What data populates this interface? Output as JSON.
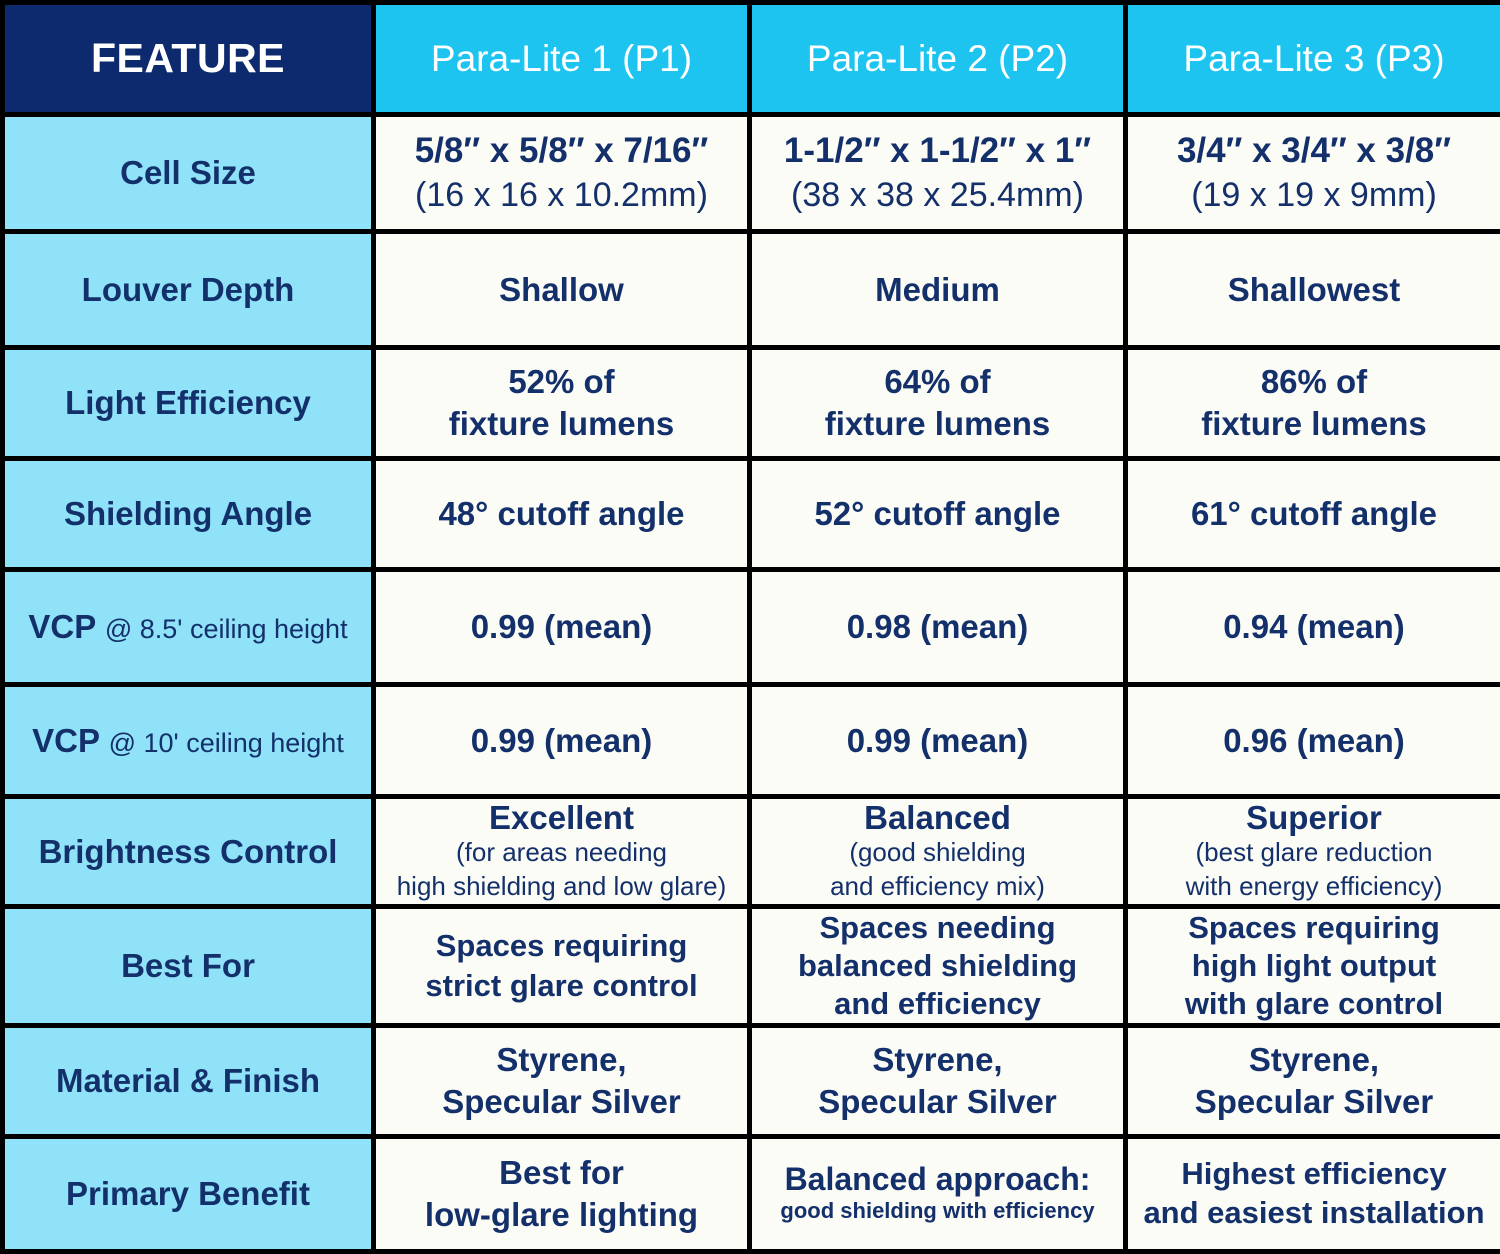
{
  "header": {
    "feature": "FEATURE",
    "p1": "Para-Lite 1 (P1)",
    "p2": "Para-Lite 2 (P2)",
    "p3": "Para-Lite 3 (P3)"
  },
  "rows": {
    "cell_size": {
      "label": "Cell Size",
      "p1": {
        "imperial": "5/8″ x 5/8″ x 7/16″",
        "metric": "(16 x 16 x 10.2mm)"
      },
      "p2": {
        "imperial": "1-1/2″ x 1-1/2″ x 1″",
        "metric": "(38 x 38 x 25.4mm)"
      },
      "p3": {
        "imperial": "3/4″ x 3/4″ x 3/8″",
        "metric": "(19 x 19 x 9mm)"
      }
    },
    "louver_depth": {
      "label": "Louver Depth",
      "p1": "Shallow",
      "p2": "Medium",
      "p3": "Shallowest"
    },
    "light_efficiency": {
      "label": "Light Efficiency",
      "p1": {
        "line1": "52% of",
        "line2": "fixture lumens"
      },
      "p2": {
        "line1": "64% of",
        "line2": "fixture lumens"
      },
      "p3": {
        "line1": "86% of",
        "line2": "fixture lumens"
      }
    },
    "shielding_angle": {
      "label": "Shielding Angle",
      "p1": "48° cutoff angle",
      "p2": "52° cutoff angle",
      "p3": "61° cutoff angle"
    },
    "vcp_85": {
      "label_main": "VCP",
      "label_sub": "@ 8.5' ceiling height",
      "p1": "0.99 (mean)",
      "p2": "0.98 (mean)",
      "p3": "0.94 (mean)"
    },
    "vcp_10": {
      "label_main": "VCP",
      "label_sub": "@ 10' ceiling height",
      "p1": "0.99 (mean)",
      "p2": "0.99 (mean)",
      "p3": "0.96 (mean)"
    },
    "brightness_control": {
      "label": "Brightness Control",
      "p1": {
        "title": "Excellent",
        "note1": "(for areas needing",
        "note2": "high shielding and low glare)"
      },
      "p2": {
        "title": "Balanced",
        "note1": "(good shielding",
        "note2": "and efficiency mix)"
      },
      "p3": {
        "title": "Superior",
        "note1": "(best glare reduction",
        "note2": "with energy efficiency)"
      }
    },
    "best_for": {
      "label": "Best For",
      "p1": {
        "line1": "Spaces requiring",
        "line2": "strict glare control"
      },
      "p2": {
        "line1": "Spaces needing",
        "line2": "balanced shielding",
        "line3": "and efficiency"
      },
      "p3": {
        "line1": "Spaces requiring",
        "line2": "high light output",
        "line3": "with glare control"
      }
    },
    "material_finish": {
      "label": "Material & Finish",
      "p1": {
        "line1": "Styrene,",
        "line2": "Specular Silver"
      },
      "p2": {
        "line1": "Styrene,",
        "line2": "Specular Silver"
      },
      "p3": {
        "line1": "Styrene,",
        "line2": "Specular Silver"
      }
    },
    "primary_benefit": {
      "label": "Primary Benefit",
      "p1": {
        "line1": "Best for",
        "line2": "low-glare lighting"
      },
      "p2": {
        "line1": "Balanced approach:",
        "line2": "good shielding with efficiency"
      },
      "p3": {
        "line1": "Highest efficiency",
        "line2": "and easiest installation"
      }
    }
  },
  "colors": {
    "header_dark": "#0e2a6e",
    "header_light": "#1cc4ef",
    "label_bg": "#8fe2f8",
    "cell_bg": "#fcfcf7",
    "text": "#14306b"
  }
}
